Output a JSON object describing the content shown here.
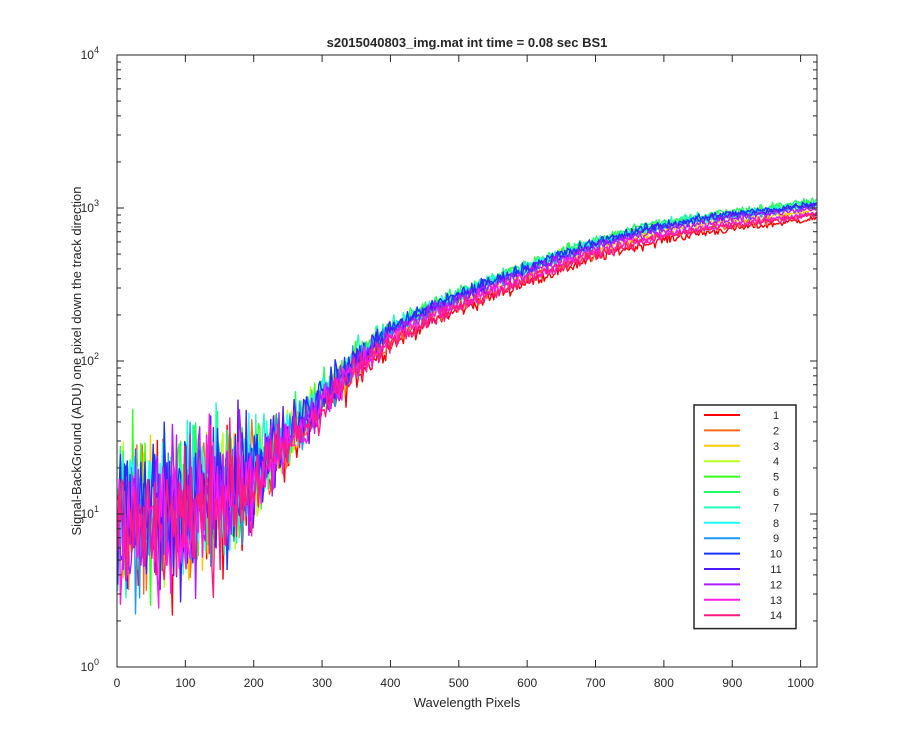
{
  "chart_data": {
    "type": "line",
    "title": "s2015040803_img.mat int time = 0.08 sec   BS1",
    "xlabel": "Wavelength Pixels",
    "ylabel": "Signal-BackGround (ADU) one pixel down the track direction",
    "xlim": [
      0,
      1024
    ],
    "ylim": [
      1,
      10000
    ],
    "yscale": "log",
    "grid": false,
    "legend_position": "bottom-right",
    "x_ticks": [
      0,
      100,
      200,
      300,
      400,
      500,
      600,
      700,
      800,
      900,
      1000
    ],
    "y_ticks": [
      {
        "value": 1,
        "base": "10",
        "exp": "0"
      },
      {
        "value": 10,
        "base": "10",
        "exp": "1"
      },
      {
        "value": 100,
        "base": "10",
        "exp": "2"
      },
      {
        "value": 1000,
        "base": "10",
        "exp": "3"
      },
      {
        "value": 10000,
        "base": "10",
        "exp": "4"
      }
    ],
    "trend": {
      "x": [
        0,
        50,
        100,
        150,
        200,
        250,
        300,
        350,
        400,
        450,
        500,
        550,
        600,
        650,
        700,
        750,
        800,
        850,
        900,
        950,
        1024
      ],
      "y": [
        9,
        10,
        11,
        13,
        18,
        30,
        55,
        95,
        150,
        200,
        250,
        310,
        380,
        460,
        550,
        640,
        720,
        790,
        850,
        900,
        1000
      ]
    },
    "series": [
      {
        "name": "1",
        "color": "#ff0000",
        "scale": 0.86
      },
      {
        "name": "2",
        "color": "#ff6a1a",
        "scale": 0.92
      },
      {
        "name": "3",
        "color": "#ffcc00",
        "scale": 0.98
      },
      {
        "name": "4",
        "color": "#b8ff1a",
        "scale": 1.06
      },
      {
        "name": "5",
        "color": "#33ff1a",
        "scale": 1.1
      },
      {
        "name": "6",
        "color": "#1aff66",
        "scale": 1.12
      },
      {
        "name": "7",
        "color": "#1affc0",
        "scale": 1.09
      },
      {
        "name": "8",
        "color": "#1affff",
        "scale": 1.06
      },
      {
        "name": "9",
        "color": "#1a99ff",
        "scale": 1.04
      },
      {
        "name": "10",
        "color": "#1a33ff",
        "scale": 1.08
      },
      {
        "name": "11",
        "color": "#4d1aff",
        "scale": 1.05
      },
      {
        "name": "12",
        "color": "#b31aff",
        "scale": 1.0
      },
      {
        "name": "13",
        "color": "#ff1ae6",
        "scale": 0.93
      },
      {
        "name": "14",
        "color": "#ff1a80",
        "scale": 0.9
      }
    ]
  }
}
